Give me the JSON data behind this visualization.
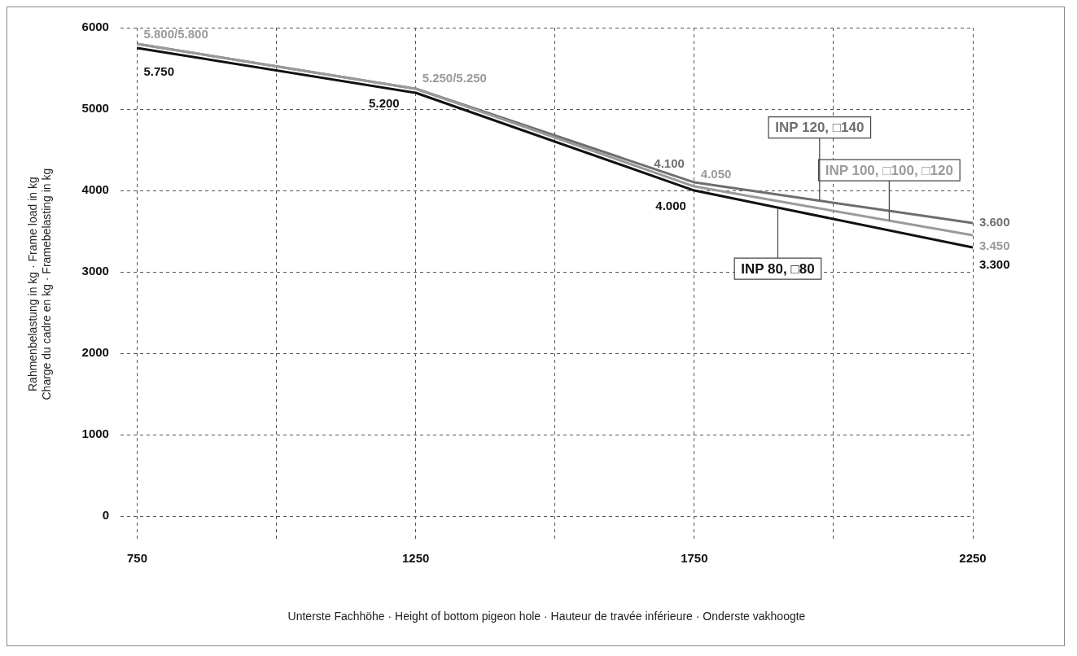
{
  "chart_data": {
    "type": "line",
    "xlabel": "Unterste Fachhöhe · Height of bottom pigeon hole · Hauteur de travée inférieure · Onderste vakhoogte",
    "ylabel": "Rahmenbelastung in kg · Frame load in kg\nCharge du cadre en kg · Framebelasting in kg",
    "x": [
      750,
      1250,
      1750,
      2250
    ],
    "series": [
      {
        "name": "INP 80, □80",
        "color": "#111111",
        "values": [
          5750,
          5200,
          4000,
          3300
        ],
        "value_labels": [
          "5.750",
          "5.200",
          "4.000",
          "3.300"
        ]
      },
      {
        "name": "INP 100, □100, □120",
        "color": "#9a9a9a",
        "values": [
          5800,
          5250,
          4050,
          3450
        ],
        "value_labels": [
          "5.800/5.800",
          "5.250/5.250",
          "4.050",
          "3.450"
        ]
      },
      {
        "name": "INP 120, □140",
        "color": "#6e6e6e",
        "values": [
          5800,
          5250,
          4100,
          3600
        ],
        "value_labels": [
          null,
          null,
          "4.100",
          "3.600"
        ]
      }
    ],
    "xlim": [
      720,
      2250
    ],
    "xticks": [
      750,
      {
        "value": 1000,
        "label": null
      },
      1250,
      {
        "value": 1500,
        "label": null
      },
      1750,
      {
        "value": 2000,
        "label": null
      },
      2250
    ],
    "ylim": [
      -300,
      6000
    ],
    "yticks": [
      0,
      1000,
      2000,
      3000,
      4000,
      5000,
      6000
    ],
    "grid": true,
    "legend": false,
    "marker": "none",
    "line_style": "solid"
  }
}
